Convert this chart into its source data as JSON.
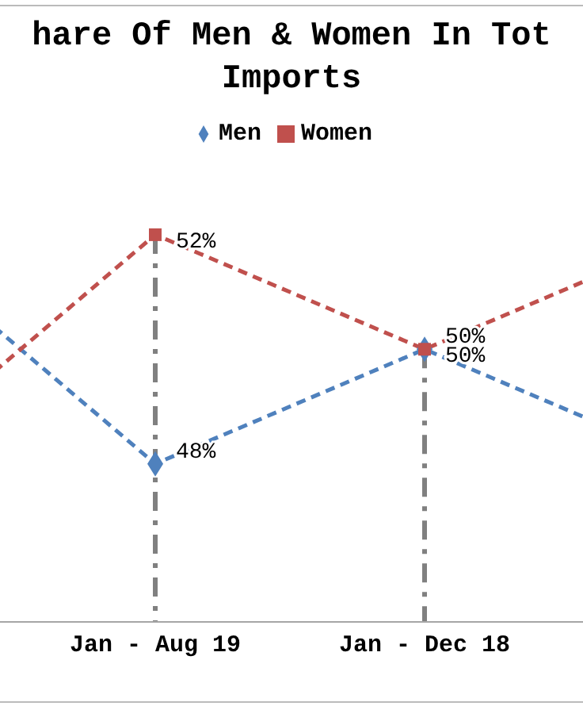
{
  "chart_data": {
    "type": "line",
    "title": "hare Of Men & Women In Tot Imports",
    "categories": [
      null,
      "Jan - Aug 19",
      "Jan - Dec 18",
      null
    ],
    "series": [
      {
        "name": "Men",
        "color": "#4f81bd",
        "values": [
          52,
          48,
          50,
          48
        ],
        "value_labels": [
          null,
          "48%",
          "50%",
          null
        ],
        "marker": "diamond"
      },
      {
        "name": "Women",
        "color": "#c0504d",
        "values": [
          48,
          52,
          50,
          52
        ],
        "value_labels": [
          null,
          "52%",
          "50%",
          null
        ],
        "marker": "square"
      }
    ],
    "line_style": "dashed",
    "legend": "top",
    "tick_labels": "x",
    "ref_lines": [
      {
        "axis": "x",
        "value": "Jan - Aug 19",
        "color": "#808080",
        "line_style": "dashdot"
      },
      {
        "axis": "x",
        "value": "Jan - Dec 18",
        "color": "#808080",
        "line_style": "dashdot"
      }
    ]
  }
}
